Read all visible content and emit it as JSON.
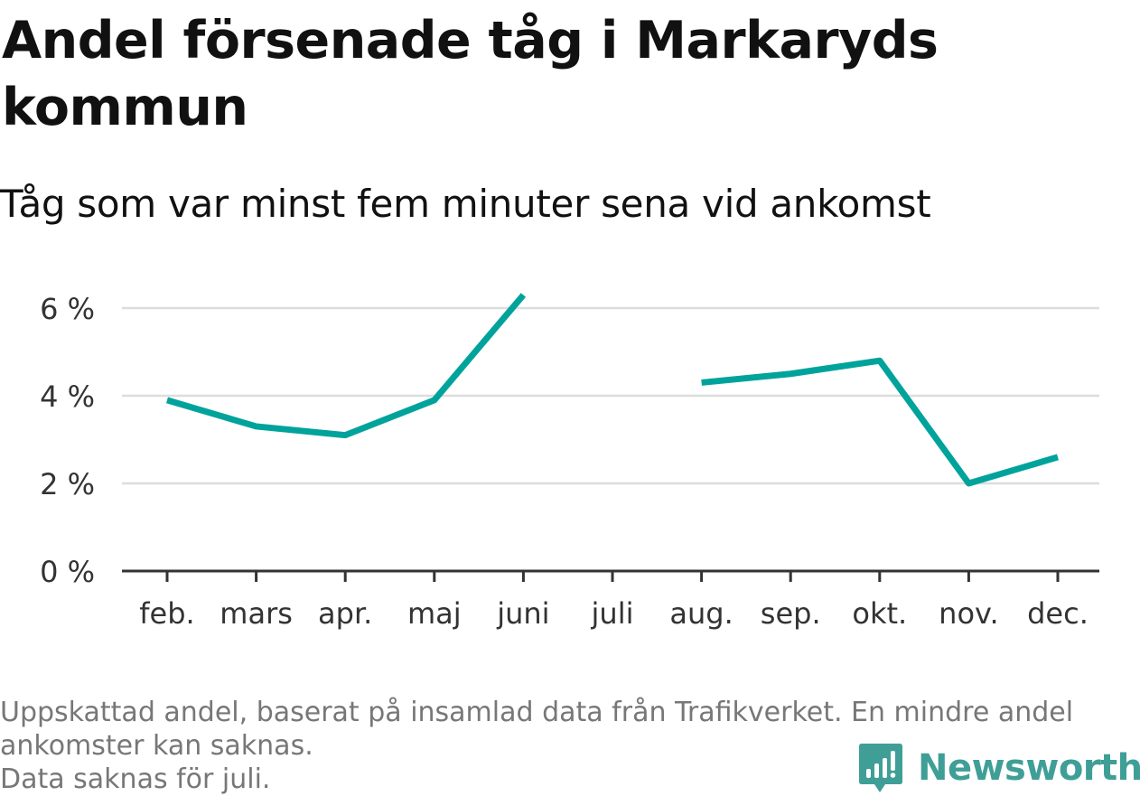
{
  "title": "Andel försenade tåg i Markaryds kommun",
  "subtitle": "Tåg som var minst fem minuter sena vid ankomst",
  "footnote": {
    "line1": "Uppskattad andel, baserat på insamlad data från Trafikverket. En mindre andel",
    "line2": "ankomster kan saknas.",
    "line3": "Data saknas för juli."
  },
  "brand": {
    "name": "Newsworthy",
    "color": "#3f9f97",
    "icon": "newsworthy-logo-icon"
  },
  "chart_data": {
    "type": "line",
    "categories": [
      "feb.",
      "mars",
      "apr.",
      "maj",
      "juni",
      "juli",
      "aug.",
      "sep.",
      "okt.",
      "nov.",
      "dec."
    ],
    "series": [
      {
        "values": [
          3.9,
          3.3,
          3.1,
          3.9,
          6.3,
          null,
          4.3,
          4.5,
          4.8,
          2.0,
          2.6
        ],
        "color": "#00a39b"
      }
    ],
    "y_ticks": [
      0,
      2,
      4,
      6
    ],
    "y_tick_labels": [
      "0 %",
      "2 %",
      "4 %",
      "6 %"
    ],
    "ylim": [
      0,
      6.3
    ],
    "grid": true,
    "xlabel": "",
    "ylabel": "",
    "legend": "none"
  }
}
